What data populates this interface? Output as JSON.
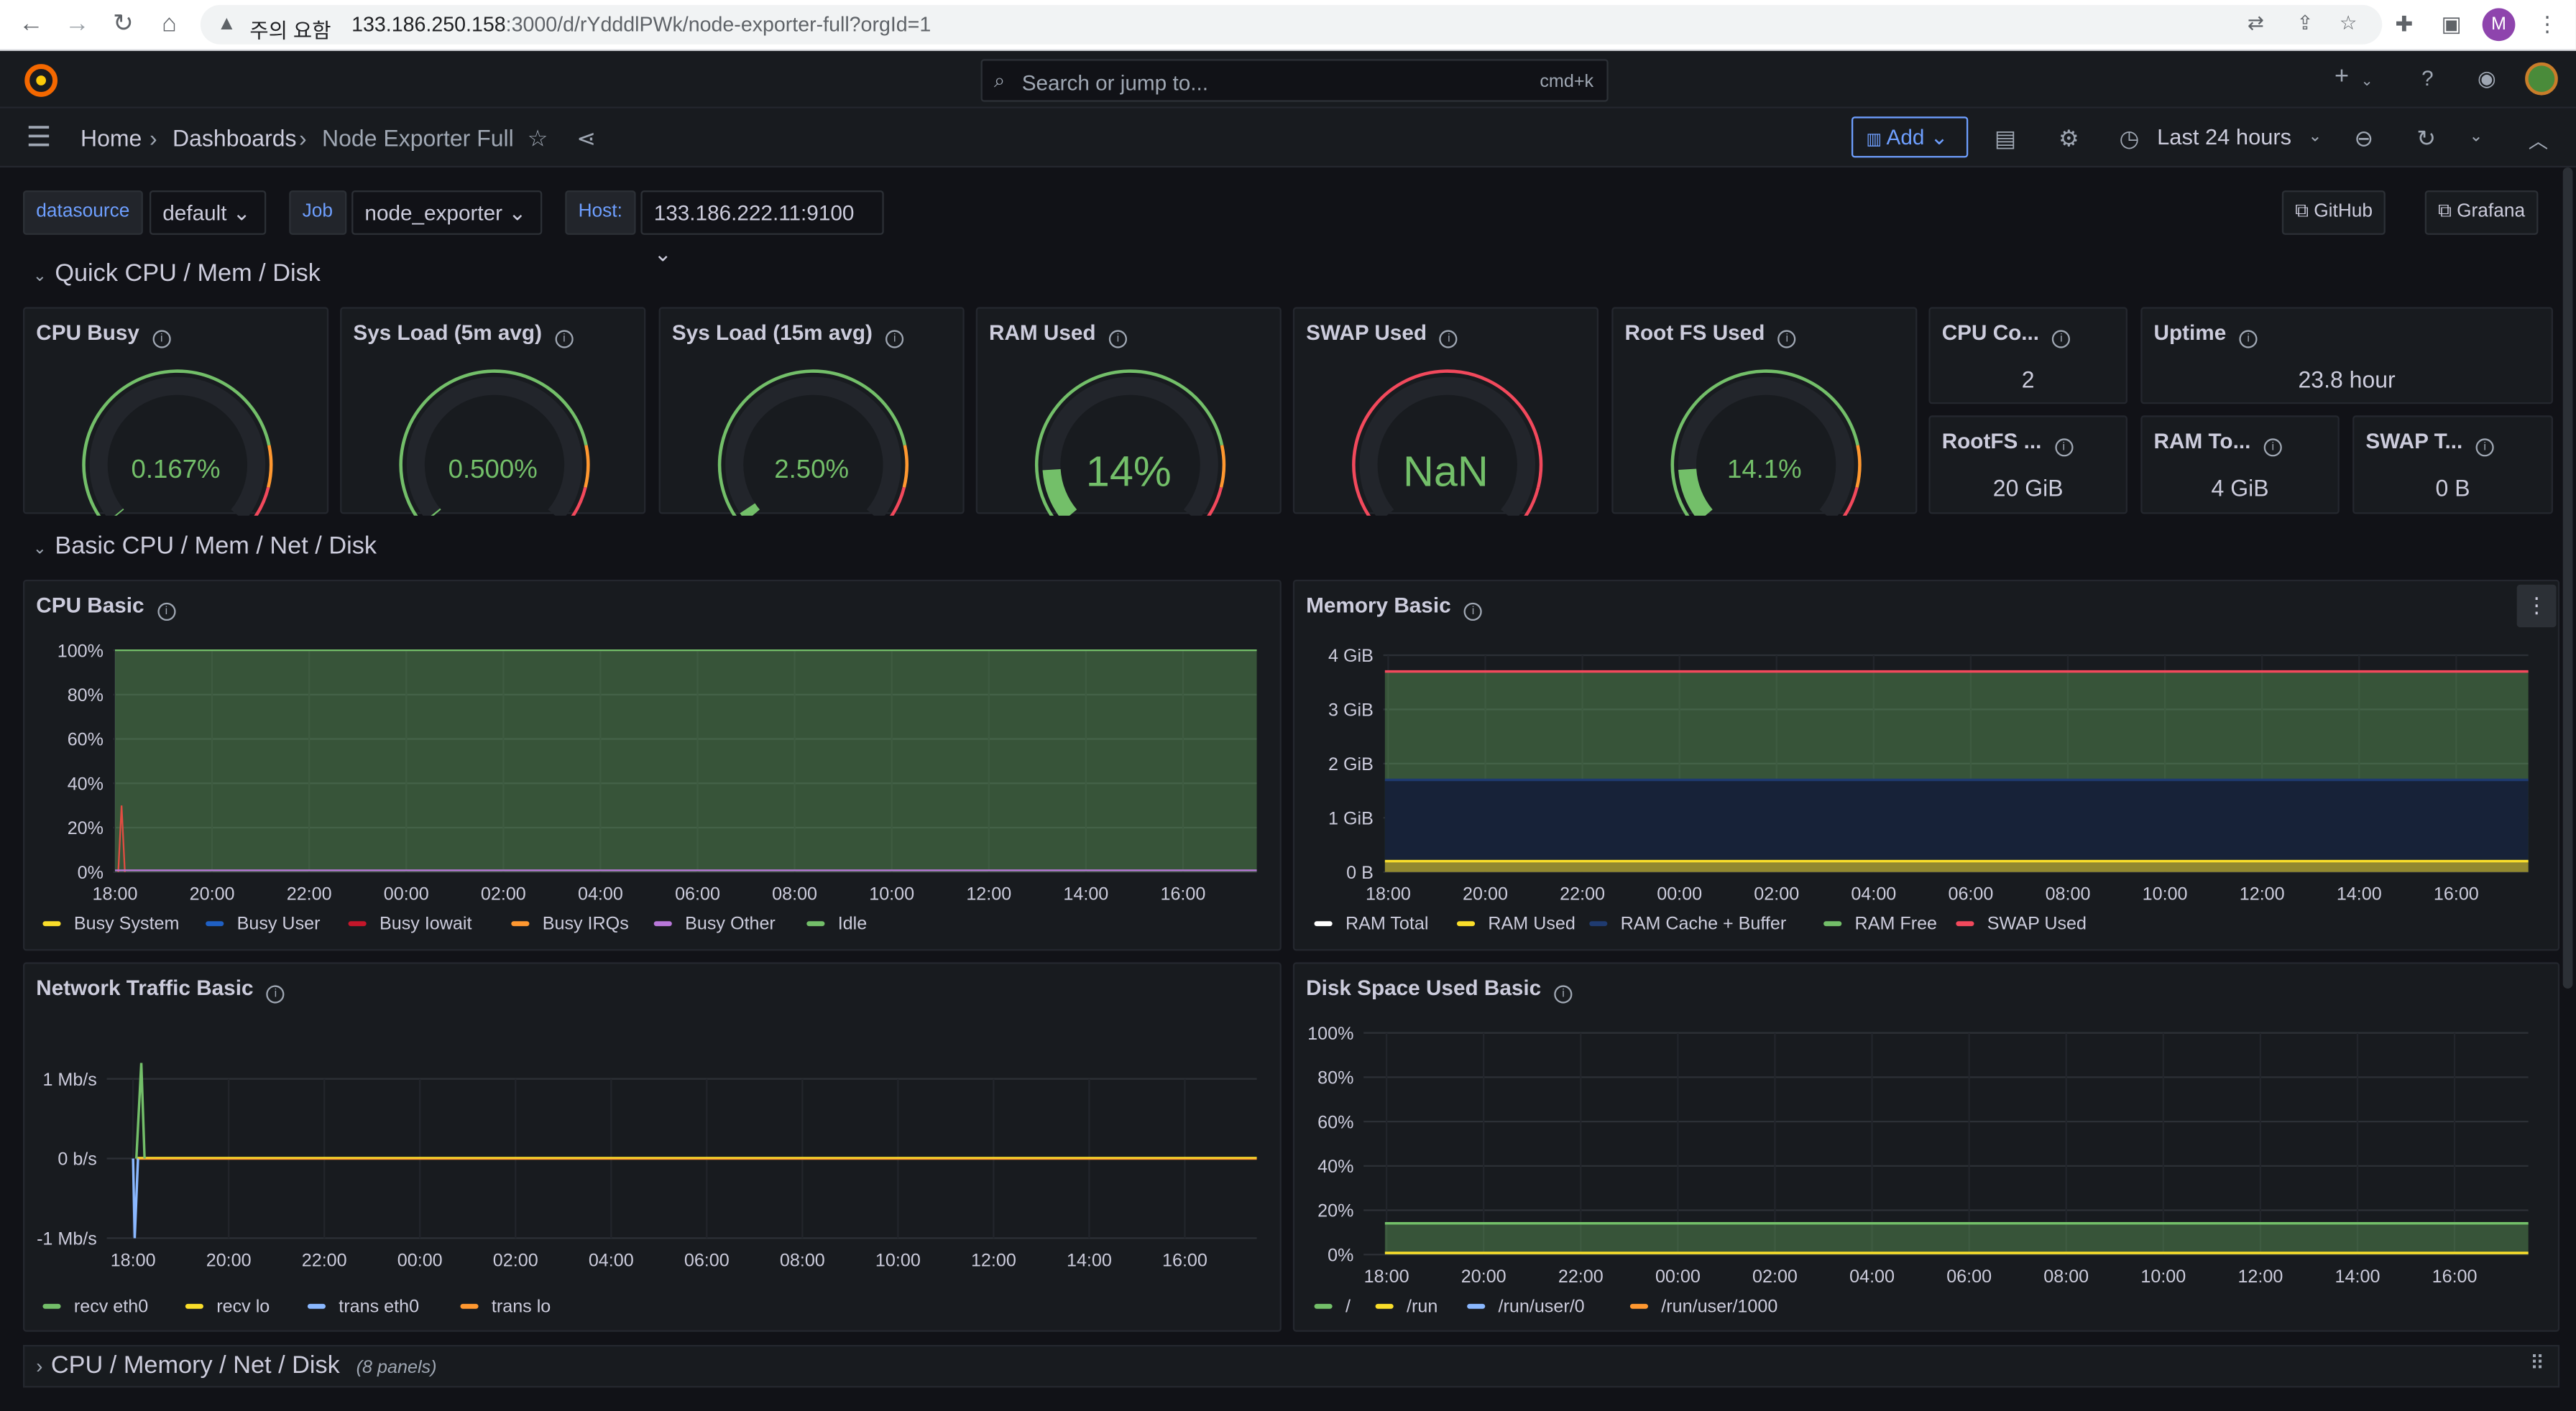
{
  "browser": {
    "warning": "주의 요함",
    "url_host": "133.186.250.158",
    "url_path": ":3000/d/rYdddlPWk/node-exporter-full?orgId=1",
    "profile_initial": "M"
  },
  "topbar": {
    "search_placeholder": "Search or jump to...",
    "search_shortcut": "cmd+k",
    "plus_label": "+"
  },
  "breadcrumb": {
    "home": "Home",
    "dashboards": "Dashboards",
    "current": "Node Exporter Full"
  },
  "toolbar": {
    "add_label": "Add",
    "time_range": "Last 24 hours"
  },
  "variables": [
    {
      "label": "datasource",
      "value": "default"
    },
    {
      "label": "Job",
      "value": "node_exporter"
    },
    {
      "label": "Host:",
      "value": "133.186.222.11:9100"
    }
  ],
  "links": {
    "github": "GitHub",
    "grafana": "Grafana"
  },
  "rows": {
    "quick": "Quick CPU / Mem / Disk",
    "basic": "Basic CPU / Mem / Net / Disk",
    "collapsed": "CPU / Memory / Net / Disk",
    "collapsed_count": "(8 panels)"
  },
  "gauges": [
    {
      "title": "CPU Busy",
      "value": "0.167%",
      "fraction": 0.0017
    },
    {
      "title": "Sys Load (5m avg)",
      "value": "0.500%",
      "fraction": 0.005
    },
    {
      "title": "Sys Load (15m avg)",
      "value": "2.50%",
      "fraction": 0.025
    },
    {
      "title": "RAM Used",
      "value": "14%",
      "fraction": 0.14
    },
    {
      "title": "SWAP Used",
      "value": "NaN",
      "fraction": 0
    },
    {
      "title": "Root FS Used",
      "value": "14.1%",
      "fraction": 0.141
    }
  ],
  "stats": [
    {
      "title": "CPU Co...",
      "value": "2"
    },
    {
      "title": "Uptime",
      "value": "23.8 hour"
    },
    {
      "title": "RootFS ...",
      "value": "20 GiB"
    },
    {
      "title": "RAM To...",
      "value": "4 GiB"
    },
    {
      "title": "SWAP T...",
      "value": "0 B"
    }
  ],
  "colors": {
    "green": "#73bf69",
    "yellow": "#fade2a",
    "red": "#f2495c",
    "blue": "#5794f2",
    "orange": "#ff9830",
    "purple": "#b877d9",
    "accent": "#6e9fff",
    "panel_bg": "#181b1f"
  },
  "charts": {
    "cpu": {
      "title": "CPU Basic"
    },
    "mem": {
      "title": "Memory Basic"
    },
    "net": {
      "title": "Network Traffic Basic"
    },
    "disk": {
      "title": "Disk Space Used Basic"
    }
  },
  "chart_data": [
    {
      "type": "area",
      "title": "CPU Basic",
      "x": [
        "18:00",
        "20:00",
        "22:00",
        "00:00",
        "02:00",
        "04:00",
        "06:00",
        "08:00",
        "10:00",
        "12:00",
        "14:00",
        "16:00"
      ],
      "y_ticks": [
        "0%",
        "20%",
        "40%",
        "60%",
        "80%",
        "100%"
      ],
      "ylim": [
        0,
        100
      ],
      "series": [
        {
          "name": "Busy System",
          "values": [
            0,
            0,
            0,
            0,
            0,
            0,
            0,
            0,
            0,
            0,
            0,
            0
          ]
        },
        {
          "name": "Busy User",
          "values": [
            0,
            0,
            0,
            0,
            0,
            0,
            0,
            0,
            0,
            0,
            0,
            0
          ]
        },
        {
          "name": "Busy Iowait",
          "values": [
            0,
            0,
            0,
            0,
            0,
            0,
            0,
            0,
            0,
            0,
            0,
            0
          ]
        },
        {
          "name": "Busy IRQs",
          "values": [
            0,
            0,
            0,
            0,
            0,
            0,
            0,
            0,
            0,
            0,
            0,
            0
          ]
        },
        {
          "name": "Busy Other",
          "values": [
            0,
            0,
            0,
            0,
            0,
            0,
            0,
            0,
            0,
            0,
            0,
            0
          ]
        },
        {
          "name": "Idle",
          "values": [
            100,
            100,
            100,
            100,
            100,
            100,
            100,
            100,
            100,
            100,
            100,
            100
          ]
        }
      ],
      "legend_colors": [
        "#fade2a",
        "#1f60c4",
        "#c4162a",
        "#ff9830",
        "#b877d9",
        "#73bf69"
      ]
    },
    {
      "type": "area",
      "title": "Memory Basic",
      "x": [
        "18:00",
        "20:00",
        "22:00",
        "00:00",
        "02:00",
        "04:00",
        "06:00",
        "08:00",
        "10:00",
        "12:00",
        "14:00",
        "16:00"
      ],
      "y_ticks": [
        "0 B",
        "1 GiB",
        "2 GiB",
        "3 GiB",
        "4 GiB"
      ],
      "ylim": [
        0,
        4
      ],
      "series": [
        {
          "name": "RAM Total",
          "values": [
            3.7,
            3.7,
            3.7,
            3.7,
            3.7,
            3.7,
            3.7,
            3.7,
            3.7,
            3.7,
            3.7,
            3.7
          ]
        },
        {
          "name": "RAM Used",
          "values": [
            0.2,
            0.2,
            0.2,
            0.2,
            0.2,
            0.2,
            0.2,
            0.2,
            0.2,
            0.2,
            0.2,
            0.2
          ]
        },
        {
          "name": "RAM Cache + Buffer",
          "values": [
            1.5,
            1.5,
            1.5,
            1.5,
            1.5,
            1.5,
            1.5,
            1.5,
            1.5,
            1.5,
            1.5,
            1.5
          ]
        },
        {
          "name": "RAM Free",
          "values": [
            2.0,
            2.0,
            2.0,
            2.0,
            2.0,
            2.0,
            2.0,
            2.0,
            2.0,
            2.0,
            2.0,
            2.0
          ]
        },
        {
          "name": "SWAP Used",
          "values": [
            0,
            0,
            0,
            0,
            0,
            0,
            0,
            0,
            0,
            0,
            0,
            0
          ]
        }
      ],
      "legend_colors": [
        "#ffffff",
        "#fade2a",
        "#1f3b70",
        "#73bf69",
        "#f2495c"
      ]
    },
    {
      "type": "line",
      "title": "Network Traffic Basic",
      "x": [
        "18:00",
        "20:00",
        "22:00",
        "00:00",
        "02:00",
        "04:00",
        "06:00",
        "08:00",
        "10:00",
        "12:00",
        "14:00",
        "16:00"
      ],
      "y_ticks": [
        "-1 Mb/s",
        "0 b/s",
        "1 Mb/s"
      ],
      "ylim": [
        -1,
        1
      ],
      "series": [
        {
          "name": "recv eth0",
          "values": [
            1.2,
            0,
            0,
            0,
            0,
            0,
            0,
            0,
            0,
            0,
            0,
            0
          ]
        },
        {
          "name": "recv lo",
          "values": [
            0,
            0,
            0,
            0,
            0,
            0,
            0,
            0,
            0,
            0,
            0,
            0
          ]
        },
        {
          "name": "trans eth0",
          "values": [
            -1.0,
            0,
            0,
            0,
            0,
            0,
            0,
            0,
            0,
            0,
            0,
            0
          ]
        },
        {
          "name": "trans lo",
          "values": [
            0,
            0,
            0,
            0,
            0,
            0,
            0,
            0,
            0,
            0,
            0,
            0
          ]
        }
      ],
      "legend_colors": [
        "#73bf69",
        "#fade2a",
        "#8ab8ff",
        "#ff9830"
      ]
    },
    {
      "type": "area",
      "title": "Disk Space Used Basic",
      "x": [
        "18:00",
        "20:00",
        "22:00",
        "00:00",
        "02:00",
        "04:00",
        "06:00",
        "08:00",
        "10:00",
        "12:00",
        "14:00",
        "16:00"
      ],
      "y_ticks": [
        "0%",
        "20%",
        "40%",
        "60%",
        "80%",
        "100%"
      ],
      "ylim": [
        0,
        100
      ],
      "series": [
        {
          "name": "/",
          "values": [
            14,
            14.1,
            14.1,
            14.1,
            14.1,
            14.1,
            14.1,
            14.1,
            14.1,
            14.1,
            14.1,
            14.1
          ]
        },
        {
          "name": "/run",
          "values": [
            0.5,
            0.5,
            0.5,
            0.5,
            0.5,
            0.5,
            0.5,
            0.5,
            0.5,
            0.5,
            0.5,
            0.5
          ]
        },
        {
          "name": "/run/user/0",
          "values": [
            0,
            0,
            0,
            0,
            0,
            0,
            0,
            0,
            0,
            0,
            0,
            0
          ]
        },
        {
          "name": "/run/user/1000",
          "values": [
            0,
            0,
            0,
            0,
            0,
            0,
            0,
            0,
            0,
            0,
            0,
            0
          ]
        }
      ],
      "legend_colors": [
        "#73bf69",
        "#fade2a",
        "#8ab8ff",
        "#ff9830"
      ]
    }
  ]
}
